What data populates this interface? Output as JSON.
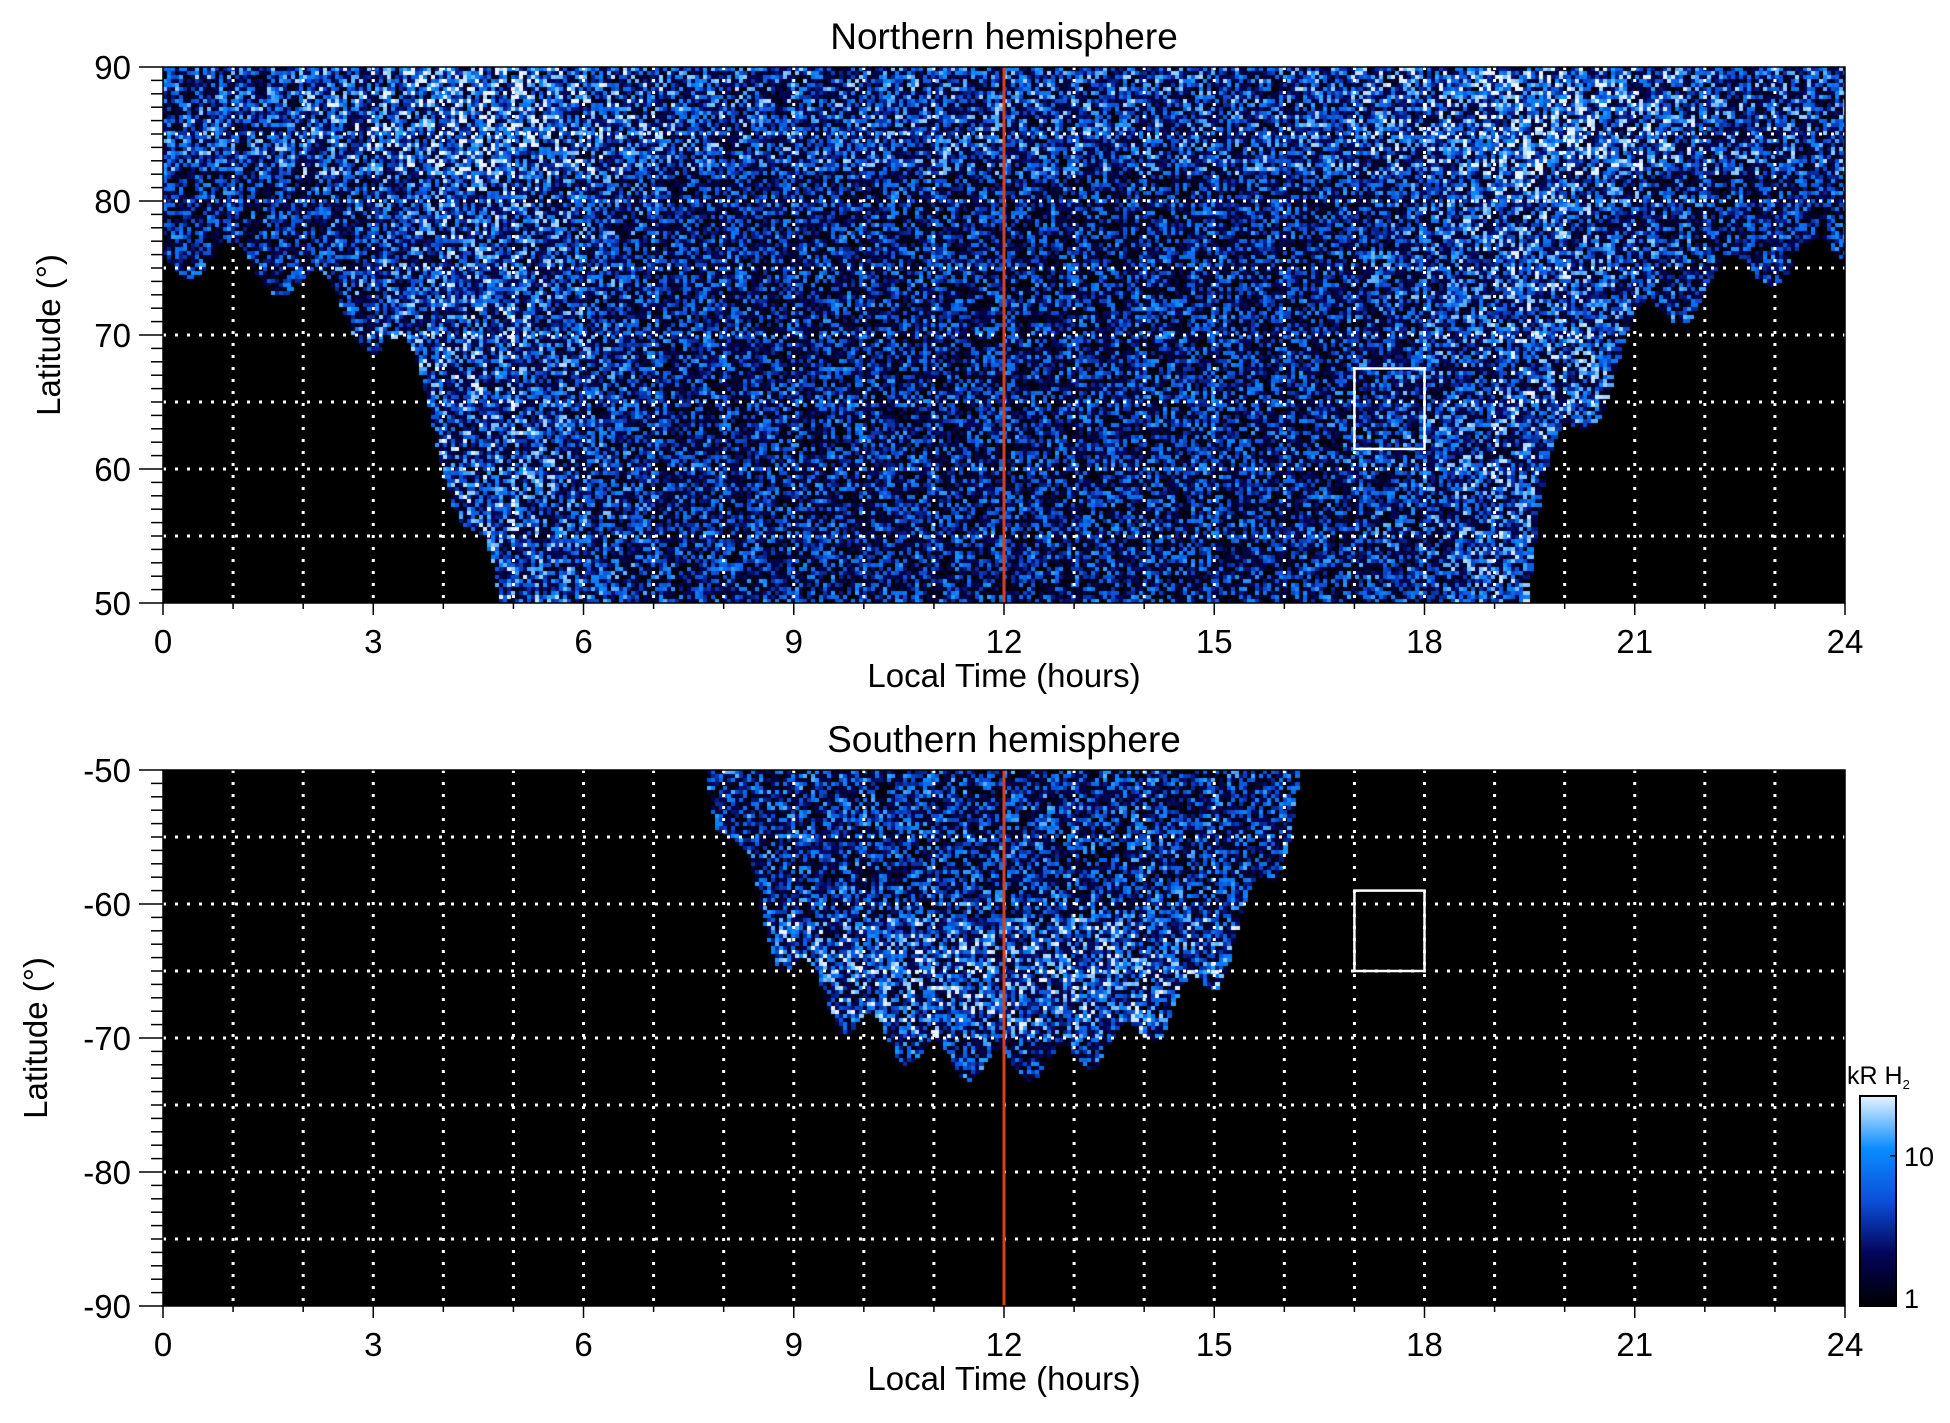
{
  "chart_data": [
    {
      "type": "heatmap",
      "title": "Northern hemisphere",
      "xlabel": "Local Time (hours)",
      "ylabel": "Latitude (°)",
      "xlim": [
        0,
        24
      ],
      "ylim": [
        50,
        90
      ],
      "xticks": [
        0,
        3,
        6,
        9,
        12,
        15,
        18,
        21,
        24
      ],
      "yticks": [
        50,
        60,
        70,
        80,
        90
      ],
      "grid": "dotted, every 1 h and 5°",
      "noon_line_lt": 12,
      "box": {
        "lt": [
          17,
          18
        ],
        "lat": [
          61.5,
          67.5
        ]
      }
    },
    {
      "type": "heatmap",
      "title": "Southern hemisphere",
      "xlabel": "Local Time (hours)",
      "ylabel": "Latitude (°)",
      "xlim": [
        0,
        24
      ],
      "ylim": [
        -90,
        -50
      ],
      "xticks": [
        0,
        3,
        6,
        9,
        12,
        15,
        18,
        21,
        24
      ],
      "yticks": [
        -50,
        -60,
        -70,
        -80,
        -90
      ],
      "grid": "dotted, every 1 h and 5°",
      "noon_line_lt": 12,
      "box": {
        "lt": [
          17,
          18
        ],
        "lat": [
          -59,
          -65
        ]
      }
    }
  ],
  "colorbar": {
    "label_main": "kR H",
    "label_sub": "2",
    "scale": "log",
    "range": [
      1,
      25
    ],
    "ticks": [
      "1",
      "10"
    ],
    "colors": [
      "#000000",
      "#03045a",
      "#0a50d8",
      "#0a8cff",
      "#e8f4ff"
    ]
  },
  "colors": {
    "noon_line": "#d8401a",
    "box": "#ffffff",
    "grid": "#ffffff"
  }
}
